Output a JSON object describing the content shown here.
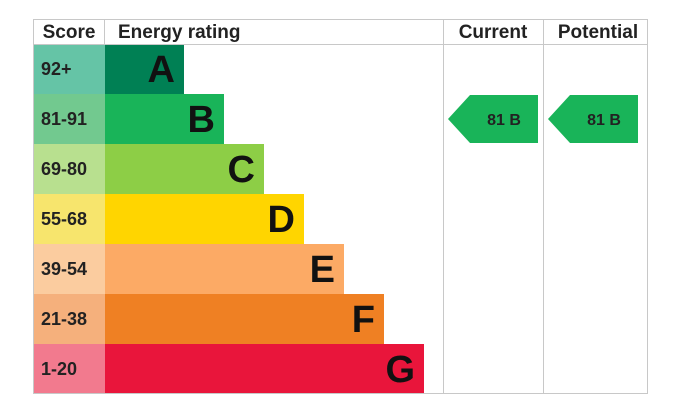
{
  "headers": {
    "score": "Score",
    "energy_rating": "Energy rating",
    "current": "Current",
    "potential": "Potential"
  },
  "chart_data": {
    "type": "bar",
    "bands": [
      {
        "score": "92+",
        "letter": "A",
        "bar_color": "#008054",
        "score_color": "#65c4a6"
      },
      {
        "score": "81-91",
        "letter": "B",
        "bar_color": "#19b459",
        "score_color": "#72c98f"
      },
      {
        "score": "69-80",
        "letter": "C",
        "bar_color": "#8dce46",
        "score_color": "#b8e08f"
      },
      {
        "score": "55-68",
        "letter": "D",
        "bar_color": "#ffd500",
        "score_color": "#f7e56d"
      },
      {
        "score": "39-54",
        "letter": "E",
        "bar_color": "#fcaa65",
        "score_color": "#fbcc9f"
      },
      {
        "score": "21-38",
        "letter": "F",
        "bar_color": "#ef8023",
        "score_color": "#f5b07c"
      },
      {
        "score": "1-20",
        "letter": "G",
        "bar_color": "#e9153b",
        "score_color": "#f27a8e"
      }
    ],
    "current": {
      "value": 81,
      "band": "B",
      "label": "81  B",
      "color": "#19b459"
    },
    "potential": {
      "value": 81,
      "band": "B",
      "label": "81  B",
      "color": "#19b459"
    }
  }
}
